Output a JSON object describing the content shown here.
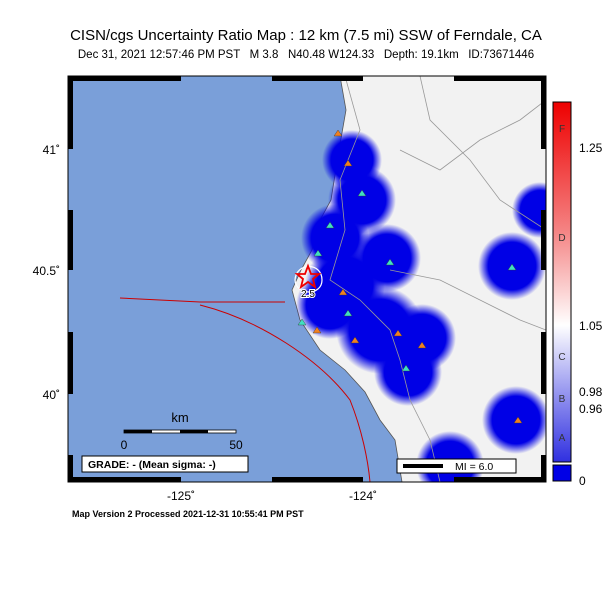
{
  "header": {
    "title": "CISN/cgs Uncertainty Ratio Map : 12 km (7.5 mi) SSW of Ferndale, CA",
    "subtitle": "Dec 31, 2021 12:57:46 PM PST   M 3.8   N40.48 W124.33   Depth: 19.1km   ID:73671446"
  },
  "map": {
    "lat_labels": [
      "41˚",
      "40.5˚",
      "40˚"
    ],
    "lon_labels": [
      "-125˚",
      "-124˚"
    ],
    "contour_label": "2.5",
    "scale_bar": {
      "unit": "km",
      "labels": [
        "0",
        "50"
      ]
    },
    "grade_box": "GRADE: - (Mean sigma: -)",
    "mi_legend": "MI = 6.0"
  },
  "colorbar": {
    "letters": [
      "F",
      "D",
      "C",
      "B",
      "A"
    ],
    "labels": [
      "1.25",
      "1.05",
      "0.98",
      "0.96",
      "0"
    ]
  },
  "footer": "Map Version 2 Processed 2021-12-31 10:55:41 PM PST"
}
